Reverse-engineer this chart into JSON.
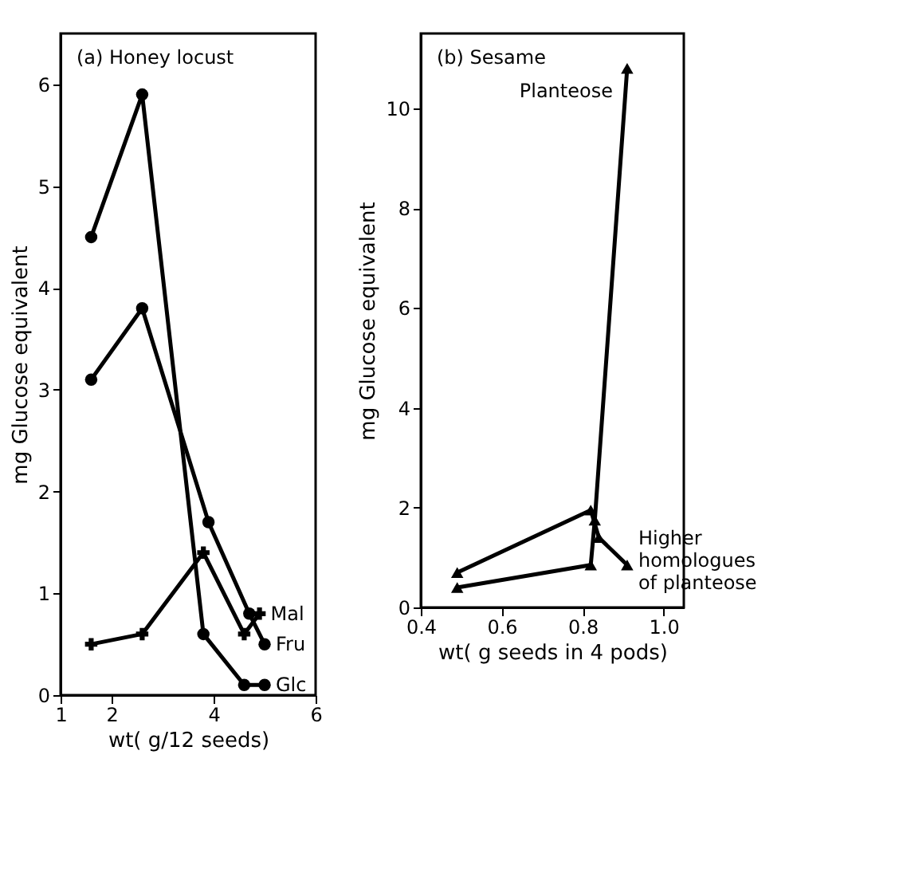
{
  "chart_data": [
    {
      "type": "line",
      "title": "(a) Honey locust",
      "xlabel": "wt( g/12 seeds)",
      "ylabel": "mg Glucose equivalent",
      "xlim": [
        1,
        6
      ],
      "xticks": [
        1,
        2,
        4,
        6
      ],
      "ylim": [
        0,
        6.5
      ],
      "yticks": [
        0,
        1,
        2,
        3,
        4,
        5,
        6
      ],
      "grid": false,
      "series": [
        {
          "name": "Glc",
          "color": "#000000",
          "marker": "circle",
          "x": [
            1.6,
            2.6,
            3.8,
            4.6,
            5.0
          ],
          "values": [
            4.5,
            5.9,
            0.6,
            0.1,
            0.1
          ]
        },
        {
          "name": "Fru",
          "color": "#000000",
          "marker": "circle",
          "x": [
            1.6,
            2.6,
            3.9,
            4.7,
            5.0
          ],
          "values": [
            3.1,
            3.8,
            1.7,
            0.8,
            0.5
          ]
        },
        {
          "name": "Mal",
          "color": "#000000",
          "marker": "cross",
          "x": [
            1.6,
            2.6,
            3.8,
            4.6,
            4.9
          ],
          "values": [
            0.5,
            0.6,
            1.4,
            0.6,
            0.8
          ]
        }
      ]
    },
    {
      "type": "line",
      "title": "(b) Sesame",
      "xlabel": "wt( g seeds in 4 pods)",
      "ylabel": "mg Glucose equivalent",
      "xlim": [
        0.4,
        1.05
      ],
      "xticks": [
        0.4,
        0.6,
        0.8,
        {
          "value": 1.0,
          "label": "1.0"
        }
      ],
      "ylim": [
        0,
        11.5
      ],
      "yticks": [
        0,
        2,
        4,
        6,
        8,
        10
      ],
      "grid": false,
      "series": [
        {
          "name": "Planteose",
          "color": "#000000",
          "marker": "triangle",
          "x": [
            0.49,
            0.82,
            0.83,
            0.91
          ],
          "values": [
            0.4,
            0.85,
            1.75,
            10.8
          ]
        },
        {
          "name": "Higher homologues of planteose",
          "color": "#000000",
          "marker": "triangle",
          "x": [
            0.49,
            0.82,
            0.84,
            0.91
          ],
          "values": [
            0.7,
            1.95,
            1.4,
            0.85
          ]
        }
      ]
    }
  ]
}
